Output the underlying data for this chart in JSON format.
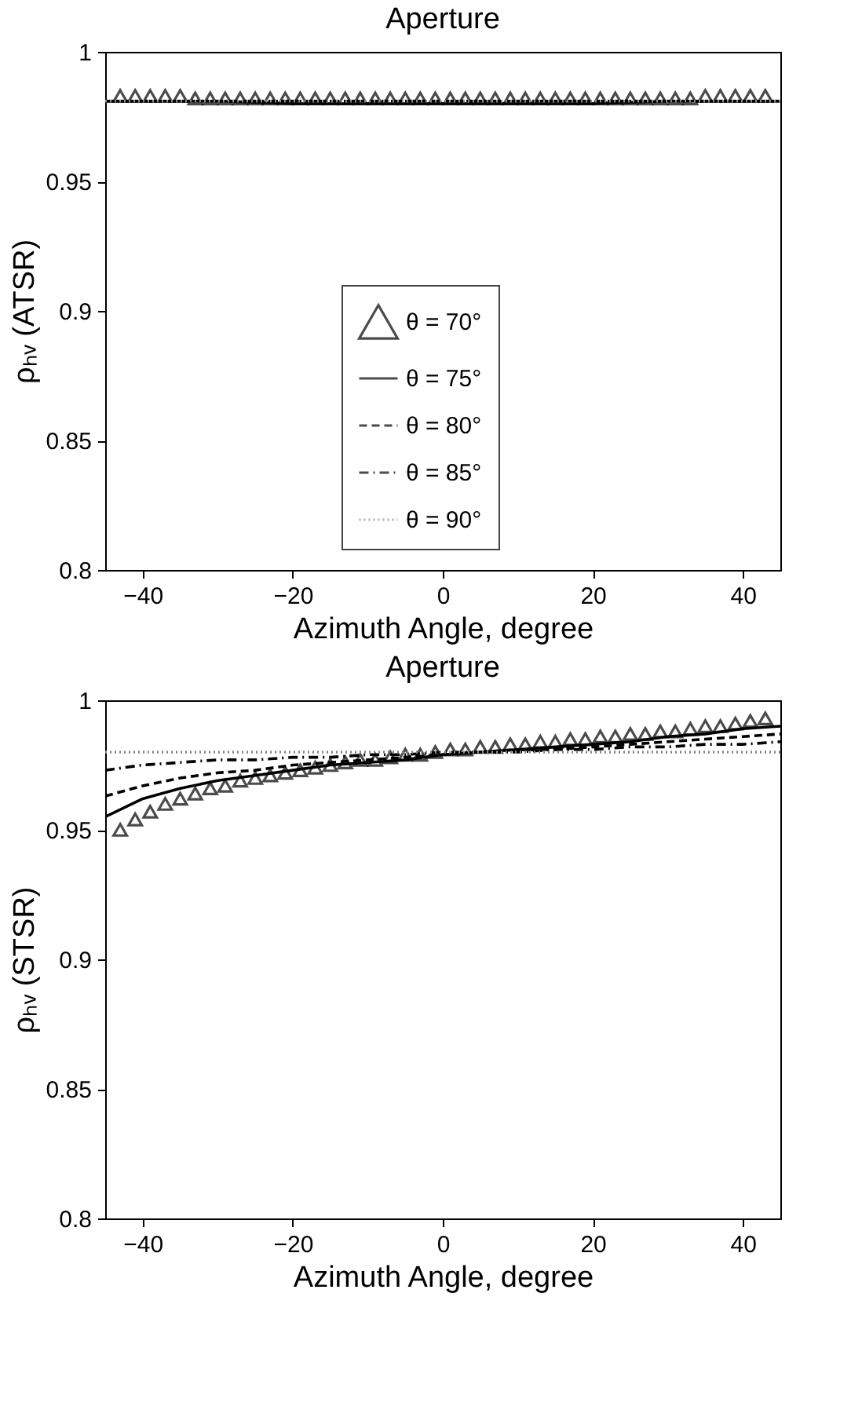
{
  "chart_data": [
    {
      "type": "line",
      "title": "Aperture",
      "xlabel": "Azimuth Angle, degree",
      "ylabel": "ρₕᵥ  (ATSR)",
      "xlim": [
        -45,
        45
      ],
      "xticks": [
        -40,
        -20,
        0,
        20,
        40
      ],
      "ylim": [
        0.8,
        1
      ],
      "yticks": [
        0.8,
        0.85,
        0.9,
        0.95,
        1
      ],
      "grid": false,
      "legend": "center",
      "series": [
        {
          "name": "θ = 70°",
          "type": "scatter",
          "marker": "triangle",
          "color": "#000000",
          "x": [
            -43,
            -41,
            -39,
            -37,
            -35,
            -33,
            -31,
            -29,
            -27,
            -25,
            -23,
            -21,
            -19,
            -17,
            -15,
            -13,
            -11,
            -9,
            -7,
            -5,
            -3,
            -1,
            1,
            3,
            5,
            7,
            9,
            11,
            13,
            15,
            17,
            19,
            21,
            23,
            25,
            27,
            29,
            31,
            33,
            35,
            37,
            39,
            41,
            43
          ],
          "values": [
            0.983,
            0.983,
            0.983,
            0.983,
            0.983,
            0.982,
            0.982,
            0.982,
            0.982,
            0.982,
            0.982,
            0.982,
            0.982,
            0.982,
            0.982,
            0.982,
            0.982,
            0.982,
            0.982,
            0.982,
            0.982,
            0.982,
            0.982,
            0.982,
            0.982,
            0.982,
            0.982,
            0.982,
            0.982,
            0.982,
            0.982,
            0.982,
            0.982,
            0.982,
            0.982,
            0.982,
            0.982,
            0.982,
            0.982,
            0.983,
            0.983,
            0.983,
            0.983,
            0.983
          ]
        },
        {
          "name": "θ = 75°",
          "line_style": "solid",
          "color": "#000000",
          "x": [
            -45,
            -30,
            -20,
            -10,
            0,
            10,
            20,
            30,
            45
          ],
          "values": [
            0.981,
            0.981,
            0.98,
            0.98,
            0.98,
            0.98,
            0.98,
            0.981,
            0.981
          ]
        },
        {
          "name": "θ = 80°",
          "line_style": "dashed",
          "color": "#000000",
          "x": [
            -45,
            0,
            45
          ],
          "values": [
            0.981,
            0.981,
            0.981
          ]
        },
        {
          "name": "θ = 85°",
          "line_style": "dashdot",
          "color": "#000000",
          "x": [
            -45,
            0,
            45
          ],
          "values": [
            0.981,
            0.981,
            0.981
          ]
        },
        {
          "name": "θ = 90°",
          "line_style": "dotted",
          "color": "#888888",
          "x": [
            -45,
            0,
            45
          ],
          "values": [
            0.981,
            0.981,
            0.981
          ]
        }
      ]
    },
    {
      "type": "line",
      "title": "Aperture",
      "xlabel": "Azimuth Angle, degree",
      "ylabel": "ρₕᵥ  (STSR)",
      "xlim": [
        -45,
        45
      ],
      "xticks": [
        -40,
        -20,
        0,
        20,
        40
      ],
      "ylim": [
        0.8,
        1
      ],
      "yticks": [
        0.8,
        0.85,
        0.9,
        0.95,
        1
      ],
      "grid": false,
      "legend": "center",
      "series": [
        {
          "name": "θ = 70°",
          "type": "scatter",
          "marker": "triangle",
          "color": "#000000",
          "x": [
            -43,
            -41,
            -39,
            -37,
            -35,
            -33,
            -31,
            -29,
            -27,
            -25,
            -23,
            -21,
            -19,
            -17,
            -15,
            -13,
            -11,
            -9,
            -7,
            -5,
            -3,
            -1,
            1,
            3,
            5,
            7,
            9,
            11,
            13,
            15,
            17,
            19,
            21,
            23,
            25,
            27,
            29,
            31,
            33,
            35,
            37,
            39,
            41,
            43
          ],
          "values": [
            0.95,
            0.954,
            0.957,
            0.96,
            0.962,
            0.964,
            0.966,
            0.967,
            0.969,
            0.97,
            0.971,
            0.972,
            0.973,
            0.974,
            0.975,
            0.976,
            0.977,
            0.977,
            0.978,
            0.979,
            0.979,
            0.98,
            0.981,
            0.981,
            0.982,
            0.982,
            0.983,
            0.983,
            0.984,
            0.984,
            0.985,
            0.985,
            0.986,
            0.986,
            0.987,
            0.987,
            0.988,
            0.988,
            0.989,
            0.99,
            0.99,
            0.991,
            0.992,
            0.993
          ]
        },
        {
          "name": "θ = 75°",
          "line_style": "solid",
          "color": "#000000",
          "x": [
            -45,
            -40,
            -35,
            -30,
            -25,
            -20,
            -15,
            -10,
            -5,
            0,
            5,
            10,
            15,
            20,
            25,
            30,
            35,
            40,
            45
          ],
          "values": [
            0.955,
            0.962,
            0.966,
            0.969,
            0.971,
            0.973,
            0.975,
            0.976,
            0.977,
            0.979,
            0.98,
            0.981,
            0.982,
            0.983,
            0.984,
            0.986,
            0.987,
            0.989,
            0.99
          ]
        },
        {
          "name": "θ = 80°",
          "line_style": "dashed",
          "color": "#000000",
          "x": [
            -45,
            -40,
            -35,
            -30,
            -25,
            -20,
            -15,
            -10,
            -5,
            0,
            5,
            10,
            15,
            20,
            25,
            30,
            35,
            40,
            45
          ],
          "values": [
            0.963,
            0.967,
            0.97,
            0.972,
            0.973,
            0.975,
            0.976,
            0.977,
            0.978,
            0.979,
            0.98,
            0.981,
            0.981,
            0.982,
            0.983,
            0.984,
            0.985,
            0.986,
            0.987
          ]
        },
        {
          "name": "θ = 85°",
          "line_style": "dashdot",
          "color": "#000000",
          "x": [
            -45,
            -40,
            -35,
            -30,
            -25,
            -20,
            -15,
            -10,
            -5,
            0,
            5,
            10,
            15,
            20,
            25,
            30,
            35,
            40,
            45
          ],
          "values": [
            0.973,
            0.975,
            0.976,
            0.977,
            0.977,
            0.978,
            0.978,
            0.979,
            0.979,
            0.98,
            0.98,
            0.98,
            0.981,
            0.981,
            0.982,
            0.982,
            0.983,
            0.983,
            0.984
          ]
        },
        {
          "name": "θ = 90°",
          "line_style": "dotted",
          "color": "#888888",
          "x": [
            -45,
            0,
            45
          ],
          "values": [
            0.98,
            0.98,
            0.98
          ]
        }
      ]
    }
  ]
}
